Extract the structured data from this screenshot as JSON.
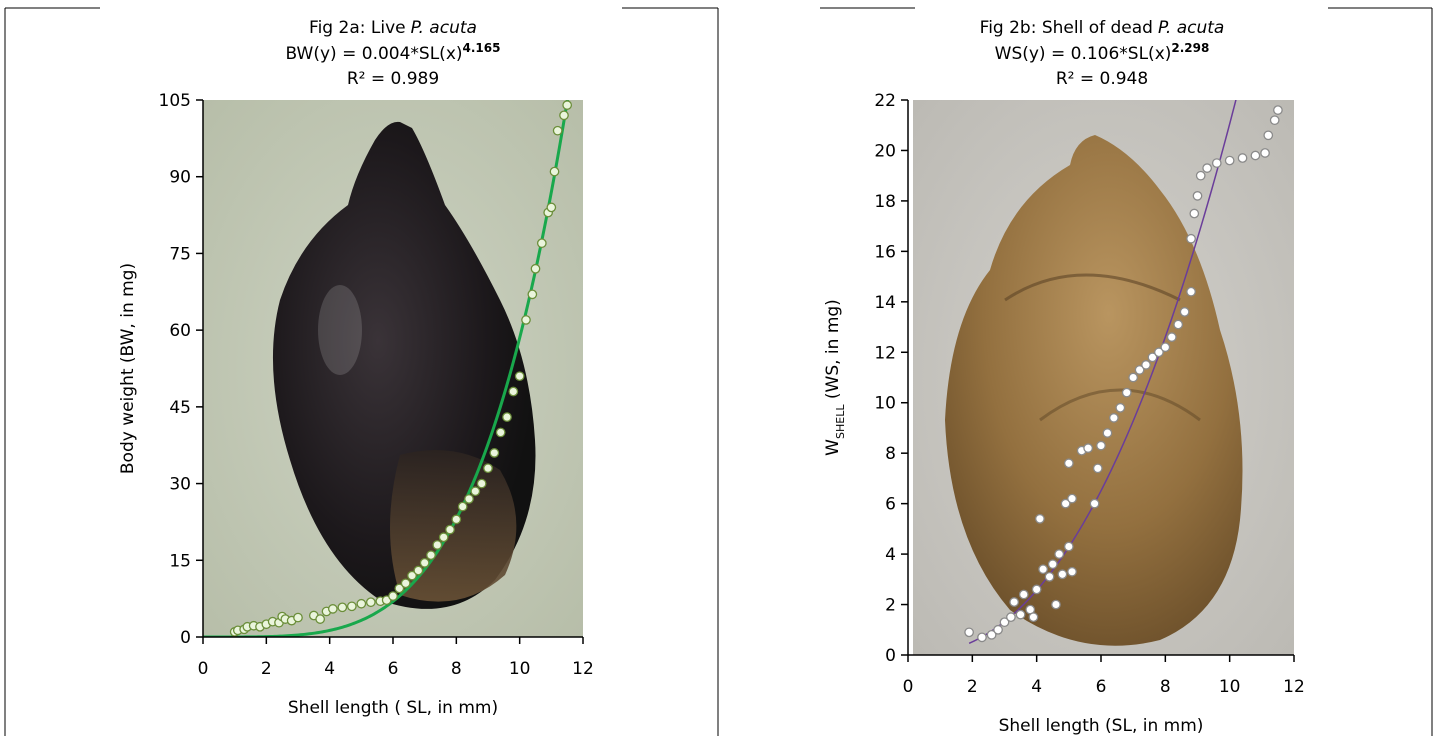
{
  "chart_data": [
    {
      "type": "scatter",
      "title": "Fig 2a: Live",
      "title_species": "P. acuta",
      "equation": {
        "lhs": "BW(y) = ",
        "coefficient": 0.004,
        "term": "*SL(x)",
        "exponent": 4.165
      },
      "r2_label": "R² = ",
      "r2": 0.989,
      "xlabel": "Shell length ( SL, in mm)",
      "ylabel": "Body weight (BW, in mg)",
      "xlim": [
        0,
        12
      ],
      "xticks": [
        0,
        2,
        4,
        6,
        8,
        10,
        12
      ],
      "ylim": [
        0,
        105
      ],
      "yticks": [
        0,
        15,
        30,
        45,
        60,
        75,
        90,
        105
      ],
      "color": "#eaf5dc",
      "edge_color": "#6b8e3a",
      "fit_color": "#19a84c",
      "fit_range": [
        0,
        11.6
      ],
      "x": [
        1.0,
        1.1,
        1.3,
        1.4,
        1.6,
        1.8,
        2.0,
        2.2,
        2.4,
        2.5,
        2.6,
        2.8,
        3.0,
        3.5,
        3.7,
        3.9,
        4.1,
        4.4,
        4.7,
        5.0,
        5.3,
        5.6,
        5.8,
        6.0,
        6.2,
        6.4,
        6.6,
        6.8,
        7.0,
        7.2,
        7.4,
        7.6,
        7.8,
        8.0,
        8.2,
        8.4,
        8.6,
        8.8,
        9.0,
        9.2,
        9.4,
        9.6,
        9.8,
        10.0,
        10.2,
        10.4,
        10.5,
        10.7,
        10.9,
        11.0,
        11.1,
        11.2,
        11.4,
        11.5
      ],
      "values": [
        1,
        1.3,
        1.5,
        2,
        2.2,
        2,
        2.5,
        3,
        2.8,
        4,
        3.5,
        3.2,
        3.8,
        4.2,
        3.5,
        5,
        5.5,
        5.8,
        6,
        6.5,
        6.8,
        7,
        7.2,
        8,
        9.5,
        10.5,
        12,
        13,
        14.5,
        16,
        18,
        19.5,
        21,
        23,
        25.5,
        27,
        28.5,
        30,
        33,
        36,
        40,
        43,
        48,
        51,
        62,
        67,
        72,
        77,
        83,
        84,
        91,
        99,
        102,
        104
      ]
    },
    {
      "type": "scatter",
      "title": "Fig 2b: Shell of dead",
      "title_species": "P. acuta",
      "equation": {
        "lhs": "WS(y) = ",
        "coefficient": 0.106,
        "term": "*SL(x)",
        "exponent": 2.298
      },
      "r2_label": "R² = ",
      "r2": 0.948,
      "xlabel": "Shell length (SL, in mm)",
      "ylabel": "W",
      "ylabel_sub": "SHELL",
      "ylabel_rest": " (WS, in mg)",
      "xlim": [
        0,
        12
      ],
      "xticks": [
        0,
        2,
        4,
        6,
        8,
        10,
        12
      ],
      "ylim": [
        0,
        22
      ],
      "yticks": [
        0,
        2,
        4,
        6,
        8,
        10,
        12,
        14,
        16,
        18,
        20,
        22
      ],
      "color": "#ffffff",
      "edge_color": "#8a8a8a",
      "fit_color": "#6a3d9a",
      "fit_range": [
        1.9,
        10.3
      ],
      "x": [
        1.9,
        2.3,
        2.6,
        2.8,
        3.0,
        3.2,
        3.3,
        3.5,
        3.6,
        3.8,
        3.9,
        4.0,
        4.1,
        4.2,
        4.4,
        4.5,
        4.6,
        4.7,
        4.8,
        4.9,
        5.0,
        5.0,
        5.1,
        5.1,
        5.4,
        5.6,
        5.8,
        5.9,
        6.0,
        6.2,
        6.4,
        6.6,
        6.8,
        7.0,
        7.2,
        7.4,
        7.6,
        7.8,
        8.0,
        8.2,
        8.4,
        8.6,
        8.8,
        8.8,
        8.9,
        9.0,
        9.1,
        9.3,
        9.6,
        10.0,
        10.4,
        10.8,
        11.1,
        11.2,
        11.4,
        11.5
      ],
      "values": [
        0.9,
        0.7,
        0.8,
        1,
        1.3,
        1.5,
        2.1,
        1.6,
        2.4,
        1.8,
        1.5,
        2.6,
        5.4,
        3.4,
        3.1,
        3.6,
        2.0,
        4,
        3.2,
        6,
        7.6,
        4.3,
        6.2,
        3.3,
        8.1,
        8.2,
        6,
        7.4,
        8.3,
        8.8,
        9.4,
        9.8,
        10.4,
        11,
        11.3,
        11.5,
        11.8,
        12,
        12.2,
        12.6,
        13.1,
        13.6,
        14.4,
        16.5,
        17.5,
        18.2,
        19,
        19.3,
        19.5,
        19.6,
        19.7,
        19.8,
        19.9,
        20.6,
        21.2,
        21.6
      ]
    }
  ]
}
